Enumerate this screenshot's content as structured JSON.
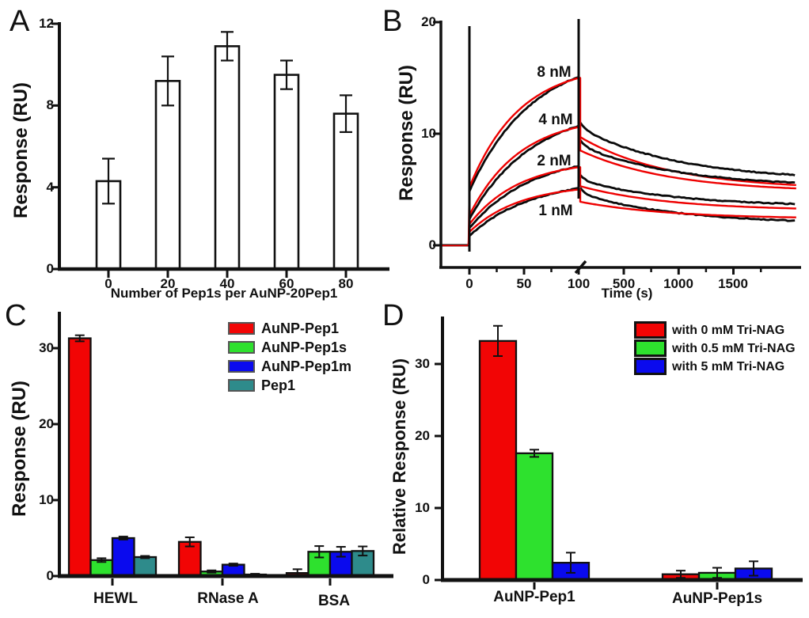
{
  "figure": {
    "background": "#ffffff",
    "panels": [
      {
        "label": "A"
      },
      {
        "label": "B"
      },
      {
        "label": "C"
      },
      {
        "label": "D"
      }
    ]
  },
  "chart_data": [
    {
      "panel": "A",
      "type": "bar",
      "title": "",
      "xlabel": "Number of Pep1s per AuNP-20Pep1",
      "ylabel": "Response (RU)",
      "categories": [
        "0",
        "20",
        "40",
        "60",
        "80"
      ],
      "values": [
        4.3,
        9.2,
        10.9,
        9.5,
        7.6
      ],
      "errors": [
        1.1,
        1.2,
        0.7,
        0.7,
        0.9
      ],
      "bar_fill": "#ffffff",
      "bar_stroke": "#111111",
      "ylim": [
        0,
        12.1
      ],
      "yticks": [
        0,
        4,
        8,
        12
      ],
      "grid": false
    },
    {
      "panel": "B",
      "type": "line",
      "title": "",
      "xlabel": "Time (s)",
      "ylabel": "Response (RU)",
      "ylim": [
        -2.2,
        20
      ],
      "yticks": [
        0,
        10,
        20
      ],
      "xticks": [
        0,
        50,
        100,
        500,
        1000,
        1500
      ],
      "x_axis_break_after_s": 100,
      "association_window_s": [
        0,
        100
      ],
      "dissociation_end_s": 2075,
      "injection_spike_times_s": [
        0,
        100
      ],
      "data_trace_color": "#0a0a0a",
      "fit_trace_color": "#ee0000",
      "series": [
        {
          "name": "8 nM",
          "assoc_start_RU": 5.2,
          "assoc_peak_RU": 15.0,
          "fit_dissoc_start_RU": 9.7,
          "fit_dissoc_end_RU": 5.4,
          "data_dissoc_start_RU": 10.5,
          "data_dissoc_end_RU": 6.3
        },
        {
          "name": "4 nM",
          "assoc_start_RU": 2.7,
          "assoc_peak_RU": 10.6,
          "fit_dissoc_start_RU": 8.5,
          "fit_dissoc_end_RU": 5.1,
          "data_dissoc_start_RU": 8.9,
          "data_dissoc_end_RU": 5.6
        },
        {
          "name": "2 nM",
          "assoc_start_RU": 1.9,
          "assoc_peak_RU": 7.0,
          "fit_dissoc_start_RU": 5.3,
          "fit_dissoc_end_RU": 3.3,
          "data_dissoc_start_RU": 5.8,
          "data_dissoc_end_RU": 3.7
        },
        {
          "name": "1 nM",
          "assoc_start_RU": 1.2,
          "assoc_peak_RU": 5.0,
          "fit_dissoc_start_RU": 3.9,
          "fit_dissoc_end_RU": 2.5,
          "data_dissoc_start_RU": 4.6,
          "data_dissoc_end_RU": 2.2
        }
      ]
    },
    {
      "panel": "C",
      "type": "bar",
      "title": "",
      "xlabel": "",
      "ylabel": "Response (RU)",
      "categories": [
        "HEWL",
        "RNase A",
        "BSA"
      ],
      "series": [
        {
          "name": "AuNP-Pep1",
          "color": "#f20505",
          "values": [
            31.3,
            4.5,
            0.4
          ],
          "errors": [
            0.4,
            0.6,
            0.5
          ]
        },
        {
          "name": "AuNP-Pep1s",
          "color": "#2ee12e",
          "values": [
            2.1,
            0.6,
            3.2
          ],
          "errors": [
            0.25,
            0.15,
            0.75
          ]
        },
        {
          "name": "AuNP-Pep1m",
          "color": "#0a0aee",
          "values": [
            5.0,
            1.5,
            3.2
          ],
          "errors": [
            0.2,
            0.15,
            0.65
          ]
        },
        {
          "name": "Pep1",
          "color": "#2e8b8b",
          "values": [
            2.5,
            0.2,
            3.3
          ],
          "errors": [
            0.15,
            0.1,
            0.6
          ]
        }
      ],
      "ylim": [
        0,
        34.8
      ],
      "yticks": [
        0,
        10,
        20,
        30
      ],
      "legend_position": "top-right",
      "grid": false
    },
    {
      "panel": "D",
      "type": "bar",
      "title": "",
      "xlabel": "",
      "ylabel": "Relative Response (RU)",
      "categories": [
        "AuNP-Pep1",
        "AuNP-Pep1s"
      ],
      "series": [
        {
          "name": "with 0 mM Tri-NAG",
          "color": "#f20505",
          "values": [
            33.2,
            0.8
          ],
          "errors": [
            2.1,
            0.5
          ]
        },
        {
          "name": "with 0.5 mM Tri-NAG",
          "color": "#2ee12e",
          "values": [
            17.6,
            1.0
          ],
          "errors": [
            0.5,
            0.7
          ]
        },
        {
          "name": "with 5 mM Tri-NAG",
          "color": "#0a0aee",
          "values": [
            2.4,
            1.6
          ],
          "errors": [
            1.4,
            1.0
          ]
        }
      ],
      "ylim": [
        0,
        36.6
      ],
      "yticks": [
        0,
        10,
        20,
        30
      ],
      "legend_position": "top-right",
      "grid": false
    }
  ]
}
